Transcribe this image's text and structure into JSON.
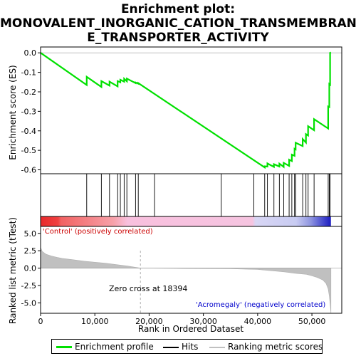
{
  "title_lines": [
    "Enrichment plot:",
    "MONOVALENT_INORGANIC_CATION_TRANSMEMBRAN",
    "E_TRANSPORTER_ACTIVITY"
  ],
  "legend": {
    "enrichment_profile": "Enrichment profile",
    "hits": "Hits",
    "ranking_metric_scores": "Ranking metric scores"
  },
  "colors": {
    "enrichment_line": "#00e000",
    "hits": "#000000",
    "metric_fill": "#c0c0c0",
    "zero_line": "#999999",
    "positive_label": "#cc0000",
    "negative_label": "#0000cc"
  },
  "chart_data": {
    "type": "line",
    "xlabel": "Rank in Ordered Dataset",
    "xlim": [
      0,
      55500
    ],
    "x_ticks": [
      0,
      10000,
      20000,
      30000,
      40000,
      50000
    ],
    "x_tick_labels": [
      "0",
      "10,000",
      "20,000",
      "30,000",
      "40,000",
      "50,000"
    ],
    "es_panel": {
      "ylabel": "Enrichment score (ES)",
      "ylim": [
        -0.62,
        0.03
      ],
      "y_ticks": [
        0.0,
        -0.1,
        -0.2,
        -0.3,
        -0.4,
        -0.5,
        -0.6
      ],
      "y_tick_labels": [
        "0.0",
        "-0.1",
        "-0.2",
        "-0.3",
        "-0.4",
        "-0.5",
        "-0.6"
      ],
      "series": [
        {
          "name": "Enrichment profile",
          "x": [
            0,
            8500,
            8500,
            11200,
            11200,
            12700,
            12700,
            14200,
            14200,
            14700,
            14700,
            15400,
            15400,
            15900,
            15900,
            17500,
            17500,
            18000,
            18000,
            41300,
            41300,
            41800,
            41800,
            43000,
            43000,
            44000,
            44000,
            44800,
            44800,
            45800,
            45800,
            46300,
            46300,
            46800,
            46800,
            47000,
            47000,
            48300,
            48300,
            48900,
            48900,
            49300,
            49300,
            50400,
            50400,
            53000,
            53000,
            53200,
            53200,
            53350,
            53350,
            53500
          ],
          "y": [
            0.0,
            -0.165,
            -0.123,
            -0.175,
            -0.145,
            -0.168,
            -0.148,
            -0.172,
            -0.145,
            -0.151,
            -0.138,
            -0.148,
            -0.133,
            -0.146,
            -0.132,
            -0.155,
            -0.152,
            -0.158,
            -0.155,
            -0.588,
            -0.582,
            -0.583,
            -0.567,
            -0.585,
            -0.571,
            -0.583,
            -0.568,
            -0.585,
            -0.564,
            -0.58,
            -0.548,
            -0.555,
            -0.522,
            -0.528,
            -0.492,
            -0.495,
            -0.461,
            -0.478,
            -0.442,
            -0.46,
            -0.417,
            -0.424,
            -0.376,
            -0.397,
            -0.34,
            -0.388,
            -0.275,
            -0.278,
            -0.16,
            -0.163,
            0.0,
            0.002
          ]
        }
      ]
    },
    "hits": [
      8500,
      11200,
      12700,
      14200,
      14700,
      15400,
      15900,
      17500,
      18000,
      21000,
      33300,
      39300,
      41300,
      41800,
      43000,
      44000,
      44800,
      45800,
      46300,
      46800,
      47000,
      48300,
      48900,
      49300,
      50400,
      53000,
      53200,
      53350
    ],
    "ranking_panel": {
      "ylabel": "Ranked list metric (tTest)",
      "ylim": [
        -6.5,
        6.0
      ],
      "y_ticks": [
        5.0,
        2.5,
        0.0,
        -2.5,
        -5.0
      ],
      "y_tick_labels": [
        "5.0",
        "2.5",
        "0.0",
        "-2.5",
        "-5.0"
      ],
      "metric": {
        "x": [
          0,
          300,
          1000,
          2000,
          3000,
          4000,
          6000,
          8000,
          10000,
          12000,
          14000,
          16000,
          18394,
          25000,
          35000,
          40000,
          45000,
          47000,
          49000,
          50000,
          51000,
          52000,
          52600,
          53000,
          53200,
          53400,
          53500
        ],
        "y": [
          3.0,
          2.4,
          2.0,
          1.75,
          1.55,
          1.4,
          1.2,
          1.0,
          0.85,
          0.7,
          0.5,
          0.3,
          0.0,
          -0.05,
          -0.1,
          -0.2,
          -0.55,
          -0.75,
          -0.9,
          -1.1,
          -1.35,
          -1.7,
          -2.2,
          -3.0,
          -4.0,
          -5.5,
          -6.5
        ]
      },
      "zero_cross_label": "Zero cross at 18394",
      "zero_cross": 18394,
      "positive_label": "'Control' (positively correlated)",
      "negative_label": "'Acromegaly' (negatively correlated)"
    }
  }
}
